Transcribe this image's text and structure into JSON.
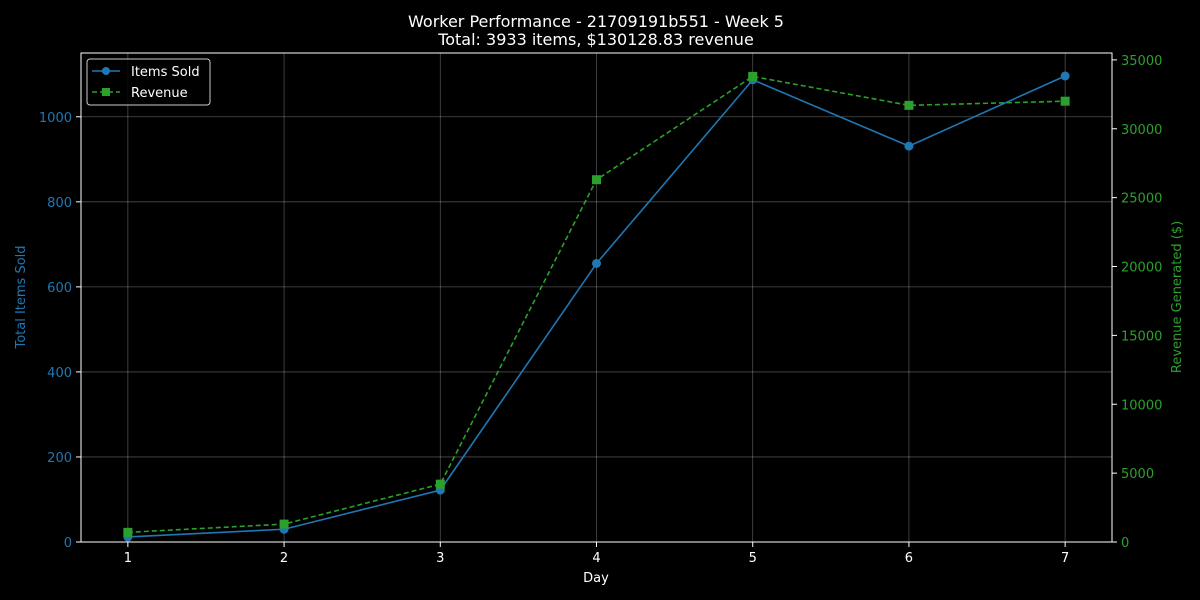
{
  "chart_data": {
    "type": "line",
    "title": "Worker Performance - 21709191b551 - Week 5",
    "subtitle": "Total: 3933 items, $130128.83 revenue",
    "xlabel": "Day",
    "ylabel_left": "Total Items Sold",
    "ylabel_right": "Revenue Generated ($)",
    "x": [
      1,
      2,
      3,
      4,
      5,
      6,
      7
    ],
    "xlim": [
      0.7,
      7.3
    ],
    "ylim_left": [
      0,
      1150
    ],
    "ylim_right": [
      0,
      35500
    ],
    "yticks_left": [
      0,
      200,
      400,
      600,
      800,
      1000
    ],
    "yticks_right": [
      0,
      5000,
      10000,
      15000,
      20000,
      25000,
      30000,
      35000
    ],
    "grid": true,
    "legend_position": "top-left",
    "series": [
      {
        "name": "Items Sold",
        "axis": "left",
        "color": "#1f77b4",
        "line_style": "solid",
        "marker": "circle",
        "values": [
          12,
          30,
          122,
          655,
          1087,
          931,
          1096
        ]
      },
      {
        "name": "Revenue",
        "axis": "right",
        "color": "#2ca02c",
        "line_style": "dashed",
        "marker": "square",
        "values": [
          700,
          1300,
          4200,
          26300,
          33800,
          31700,
          32000
        ]
      }
    ]
  }
}
